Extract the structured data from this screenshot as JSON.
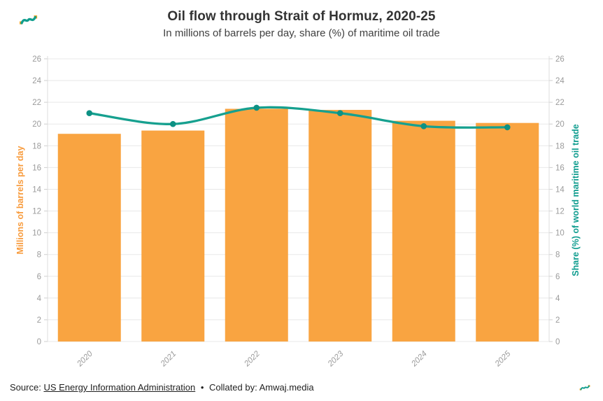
{
  "header": {
    "title": "Oil flow through Strait of Hormuz, 2020-25",
    "subtitle": "In millions of barrels per day, share (%) of maritime oil trade"
  },
  "chart_data": {
    "type": "bar",
    "categories": [
      "2020",
      "2021",
      "2022",
      "2023",
      "2024",
      "2025"
    ],
    "series": [
      {
        "name": "Millions of barrels per day",
        "kind": "bar",
        "values": [
          19.1,
          19.4,
          21.4,
          21.3,
          20.3,
          20.1
        ]
      },
      {
        "name": "Share (%) of world maritime oil trade",
        "kind": "line",
        "values": [
          21.0,
          20.0,
          21.5,
          21.0,
          19.8,
          19.7
        ]
      }
    ],
    "title": "Oil flow through Strait of Hormuz, 2020-25",
    "subtitle": "In millions of barrels per day, share (%) of maritime oil trade",
    "xlabel": "",
    "ylabel_left": "Millions of barrels per day",
    "ylabel_right": "Share (%) of world maritime oil trade",
    "ylim": [
      0,
      26
    ],
    "yticks": [
      0,
      2,
      4,
      6,
      8,
      10,
      12,
      14,
      16,
      18,
      20,
      22,
      24,
      26
    ],
    "grid": "horizontal",
    "legend": "none"
  },
  "colors": {
    "bar": "#F9A441",
    "line": "#16A08F",
    "dot": "#0D9184",
    "left_axis_title": "#F89B3C",
    "right_axis_title": "#0E9C8E",
    "tick_label": "#9B9B9B",
    "grid": "#E8E8E8",
    "axis_line": "#DCDCDC",
    "tick_mark": "#CFCFCF"
  },
  "footer": {
    "source_prefix": "Source:",
    "source_link": "US Energy Information Administration",
    "separator": "•",
    "collated": "Collated by: Amwaj.media"
  }
}
